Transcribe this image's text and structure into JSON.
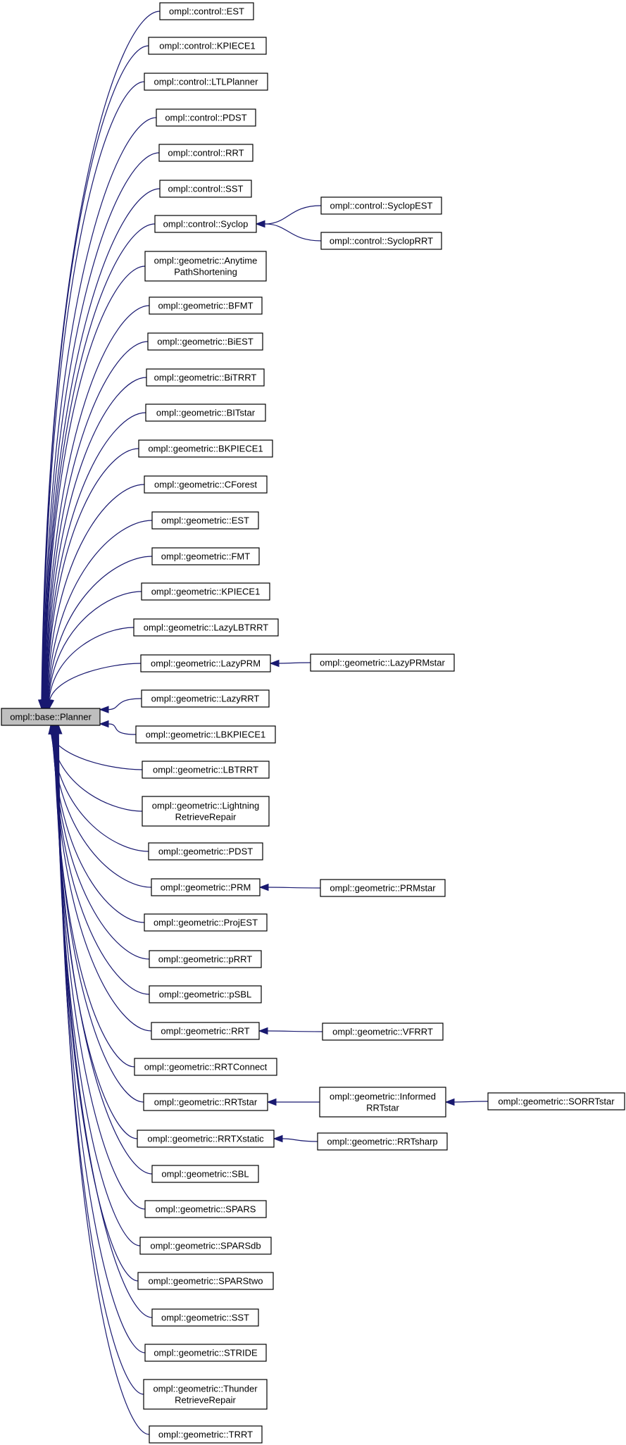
{
  "diagram": {
    "type": "inheritance-graph",
    "colors": {
      "edge": "#191970",
      "root_fill": "#bfbfbf",
      "node_fill": "#ffffff",
      "border": "#000000"
    },
    "nodes": [
      {
        "id": "planner",
        "lines": [
          "ompl::base::Planner"
        ],
        "root": true
      },
      {
        "id": "c_est",
        "lines": [
          "ompl::control::EST"
        ]
      },
      {
        "id": "c_kpiece1",
        "lines": [
          "ompl::control::KPIECE1"
        ]
      },
      {
        "id": "c_ltlplanner",
        "lines": [
          "ompl::control::LTLPlanner"
        ]
      },
      {
        "id": "c_pdst",
        "lines": [
          "ompl::control::PDST"
        ]
      },
      {
        "id": "c_rrt",
        "lines": [
          "ompl::control::RRT"
        ]
      },
      {
        "id": "c_sst",
        "lines": [
          "ompl::control::SST"
        ]
      },
      {
        "id": "c_syclop",
        "lines": [
          "ompl::control::Syclop"
        ]
      },
      {
        "id": "g_anytime",
        "lines": [
          "ompl::geometric::Anytime",
          "PathShortening"
        ]
      },
      {
        "id": "g_bfmt",
        "lines": [
          "ompl::geometric::BFMT"
        ]
      },
      {
        "id": "g_biest",
        "lines": [
          "ompl::geometric::BiEST"
        ]
      },
      {
        "id": "g_bitrrt",
        "lines": [
          "ompl::geometric::BiTRRT"
        ]
      },
      {
        "id": "g_bitstar",
        "lines": [
          "ompl::geometric::BITstar"
        ]
      },
      {
        "id": "g_bkpiece1",
        "lines": [
          "ompl::geometric::BKPIECE1"
        ]
      },
      {
        "id": "g_cforest",
        "lines": [
          "ompl::geometric::CForest"
        ]
      },
      {
        "id": "g_est",
        "lines": [
          "ompl::geometric::EST"
        ]
      },
      {
        "id": "g_fmt",
        "lines": [
          "ompl::geometric::FMT"
        ]
      },
      {
        "id": "g_kpiece1",
        "lines": [
          "ompl::geometric::KPIECE1"
        ]
      },
      {
        "id": "g_lazylbtrrt",
        "lines": [
          "ompl::geometric::LazyLBTRRT"
        ]
      },
      {
        "id": "g_lazyprm",
        "lines": [
          "ompl::geometric::LazyPRM"
        ]
      },
      {
        "id": "g_lazyrrt",
        "lines": [
          "ompl::geometric::LazyRRT"
        ]
      },
      {
        "id": "g_lbkpiece1",
        "lines": [
          "ompl::geometric::LBKPIECE1"
        ]
      },
      {
        "id": "g_lbtrrt",
        "lines": [
          "ompl::geometric::LBTRRT"
        ]
      },
      {
        "id": "g_lightning",
        "lines": [
          "ompl::geometric::Lightning",
          "RetrieveRepair"
        ]
      },
      {
        "id": "g_pdst",
        "lines": [
          "ompl::geometric::PDST"
        ]
      },
      {
        "id": "g_prm",
        "lines": [
          "ompl::geometric::PRM"
        ]
      },
      {
        "id": "g_projest",
        "lines": [
          "ompl::geometric::ProjEST"
        ]
      },
      {
        "id": "g_prrt",
        "lines": [
          "ompl::geometric::pRRT"
        ]
      },
      {
        "id": "g_psbl",
        "lines": [
          "ompl::geometric::pSBL"
        ]
      },
      {
        "id": "g_rrt",
        "lines": [
          "ompl::geometric::RRT"
        ]
      },
      {
        "id": "g_rrtconnect",
        "lines": [
          "ompl::geometric::RRTConnect"
        ]
      },
      {
        "id": "g_rrtstar",
        "lines": [
          "ompl::geometric::RRTstar"
        ]
      },
      {
        "id": "g_rrtxstatic",
        "lines": [
          "ompl::geometric::RRTXstatic"
        ]
      },
      {
        "id": "g_sbl",
        "lines": [
          "ompl::geometric::SBL"
        ]
      },
      {
        "id": "g_spars",
        "lines": [
          "ompl::geometric::SPARS"
        ]
      },
      {
        "id": "g_sparsdb",
        "lines": [
          "ompl::geometric::SPARSdb"
        ]
      },
      {
        "id": "g_sparstwo",
        "lines": [
          "ompl::geometric::SPARStwo"
        ]
      },
      {
        "id": "g_sst",
        "lines": [
          "ompl::geometric::SST"
        ]
      },
      {
        "id": "g_stride",
        "lines": [
          "ompl::geometric::STRIDE"
        ]
      },
      {
        "id": "g_thunder",
        "lines": [
          "ompl::geometric::Thunder",
          "RetrieveRepair"
        ]
      },
      {
        "id": "g_trrt",
        "lines": [
          "ompl::geometric::TRRT"
        ]
      },
      {
        "id": "c_syclopest",
        "lines": [
          "ompl::control::SyclopEST"
        ]
      },
      {
        "id": "c_sycloprrt",
        "lines": [
          "ompl::control::SyclopRRT"
        ]
      },
      {
        "id": "g_lazyprmstar",
        "lines": [
          "ompl::geometric::LazyPRMstar"
        ]
      },
      {
        "id": "g_prmstar",
        "lines": [
          "ompl::geometric::PRMstar"
        ]
      },
      {
        "id": "g_vfrrt",
        "lines": [
          "ompl::geometric::VFRRT"
        ]
      },
      {
        "id": "g_informedrrtstar",
        "lines": [
          "ompl::geometric::Informed",
          "RRTstar"
        ]
      },
      {
        "id": "g_rrtsharp",
        "lines": [
          "ompl::geometric::RRTsharp"
        ]
      },
      {
        "id": "g_sorrtstar",
        "lines": [
          "ompl::geometric::SORRTstar"
        ]
      }
    ],
    "edges": [
      [
        "c_est",
        "planner"
      ],
      [
        "c_kpiece1",
        "planner"
      ],
      [
        "c_ltlplanner",
        "planner"
      ],
      [
        "c_pdst",
        "planner"
      ],
      [
        "c_rrt",
        "planner"
      ],
      [
        "c_sst",
        "planner"
      ],
      [
        "c_syclop",
        "planner"
      ],
      [
        "g_anytime",
        "planner"
      ],
      [
        "g_bfmt",
        "planner"
      ],
      [
        "g_biest",
        "planner"
      ],
      [
        "g_bitrrt",
        "planner"
      ],
      [
        "g_bitstar",
        "planner"
      ],
      [
        "g_bkpiece1",
        "planner"
      ],
      [
        "g_cforest",
        "planner"
      ],
      [
        "g_est",
        "planner"
      ],
      [
        "g_fmt",
        "planner"
      ],
      [
        "g_kpiece1",
        "planner"
      ],
      [
        "g_lazylbtrrt",
        "planner"
      ],
      [
        "g_lazyprm",
        "planner"
      ],
      [
        "g_lazyrrt",
        "planner"
      ],
      [
        "g_lbkpiece1",
        "planner"
      ],
      [
        "g_lbtrrt",
        "planner"
      ],
      [
        "g_lightning",
        "planner"
      ],
      [
        "g_pdst",
        "planner"
      ],
      [
        "g_prm",
        "planner"
      ],
      [
        "g_projest",
        "planner"
      ],
      [
        "g_prrt",
        "planner"
      ],
      [
        "g_psbl",
        "planner"
      ],
      [
        "g_rrt",
        "planner"
      ],
      [
        "g_rrtconnect",
        "planner"
      ],
      [
        "g_rrtstar",
        "planner"
      ],
      [
        "g_rrtxstatic",
        "planner"
      ],
      [
        "g_sbl",
        "planner"
      ],
      [
        "g_spars",
        "planner"
      ],
      [
        "g_sparsdb",
        "planner"
      ],
      [
        "g_sparstwo",
        "planner"
      ],
      [
        "g_sst",
        "planner"
      ],
      [
        "g_stride",
        "planner"
      ],
      [
        "g_thunder",
        "planner"
      ],
      [
        "g_trrt",
        "planner"
      ],
      [
        "c_syclopest",
        "c_syclop"
      ],
      [
        "c_sycloprrt",
        "c_syclop"
      ],
      [
        "g_lazyprmstar",
        "g_lazyprm"
      ],
      [
        "g_prmstar",
        "g_prm"
      ],
      [
        "g_vfrrt",
        "g_rrt"
      ],
      [
        "g_informedrrtstar",
        "g_rrtstar"
      ],
      [
        "g_rrtsharp",
        "g_rrtxstatic"
      ],
      [
        "g_sorrtstar",
        "g_informedrrtstar"
      ]
    ]
  }
}
